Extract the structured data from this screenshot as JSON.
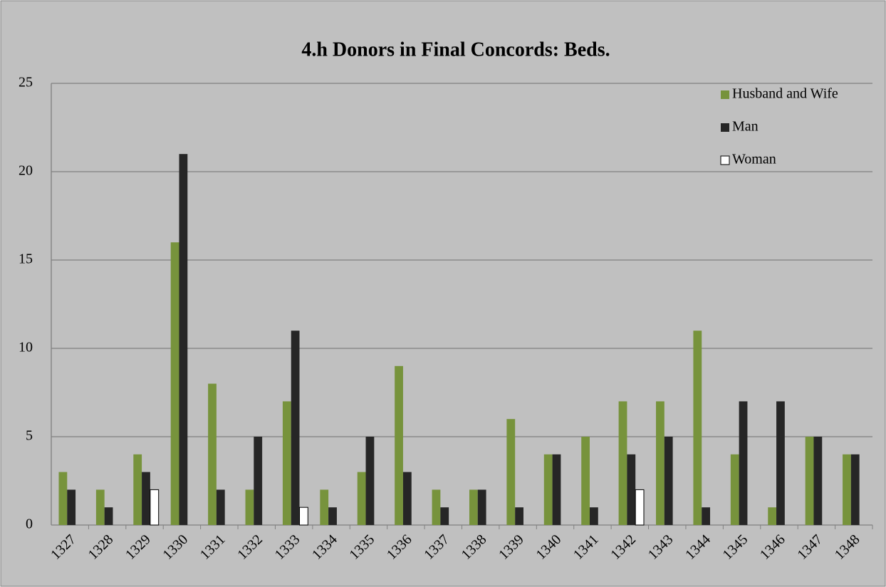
{
  "chart_data": {
    "type": "bar",
    "title": "4.h Donors in Final Concords: Beds.",
    "categories": [
      "1327",
      "1328",
      "1329",
      "1330",
      "1331",
      "1332",
      "1333",
      "1334",
      "1335",
      "1336",
      "1337",
      "1338",
      "1339",
      "1340",
      "1341",
      "1342",
      "1343",
      "1344",
      "1345",
      "1346",
      "1347",
      "1348"
    ],
    "series": [
      {
        "name": "Husband and Wife",
        "color": "#77933c",
        "values": [
          3,
          2,
          4,
          16,
          8,
          2,
          7,
          2,
          3,
          9,
          2,
          2,
          6,
          4,
          5,
          7,
          7,
          11,
          4,
          1,
          5,
          4
        ]
      },
      {
        "name": "Man",
        "color": "#262626",
        "values": [
          2,
          1,
          3,
          21,
          2,
          5,
          11,
          1,
          5,
          3,
          1,
          2,
          1,
          4,
          1,
          4,
          5,
          1,
          7,
          7,
          5,
          4
        ]
      },
      {
        "name": "Woman",
        "color": "#ffffff",
        "values": [
          0,
          0,
          2,
          0,
          0,
          0,
          1,
          0,
          0,
          0,
          0,
          0,
          0,
          0,
          0,
          2,
          0,
          0,
          0,
          0,
          0,
          0
        ]
      }
    ],
    "ylim": [
      0,
      25
    ],
    "yticks": [
      0,
      5,
      10,
      15,
      20,
      25
    ],
    "grid": true,
    "legend": "upper right"
  }
}
